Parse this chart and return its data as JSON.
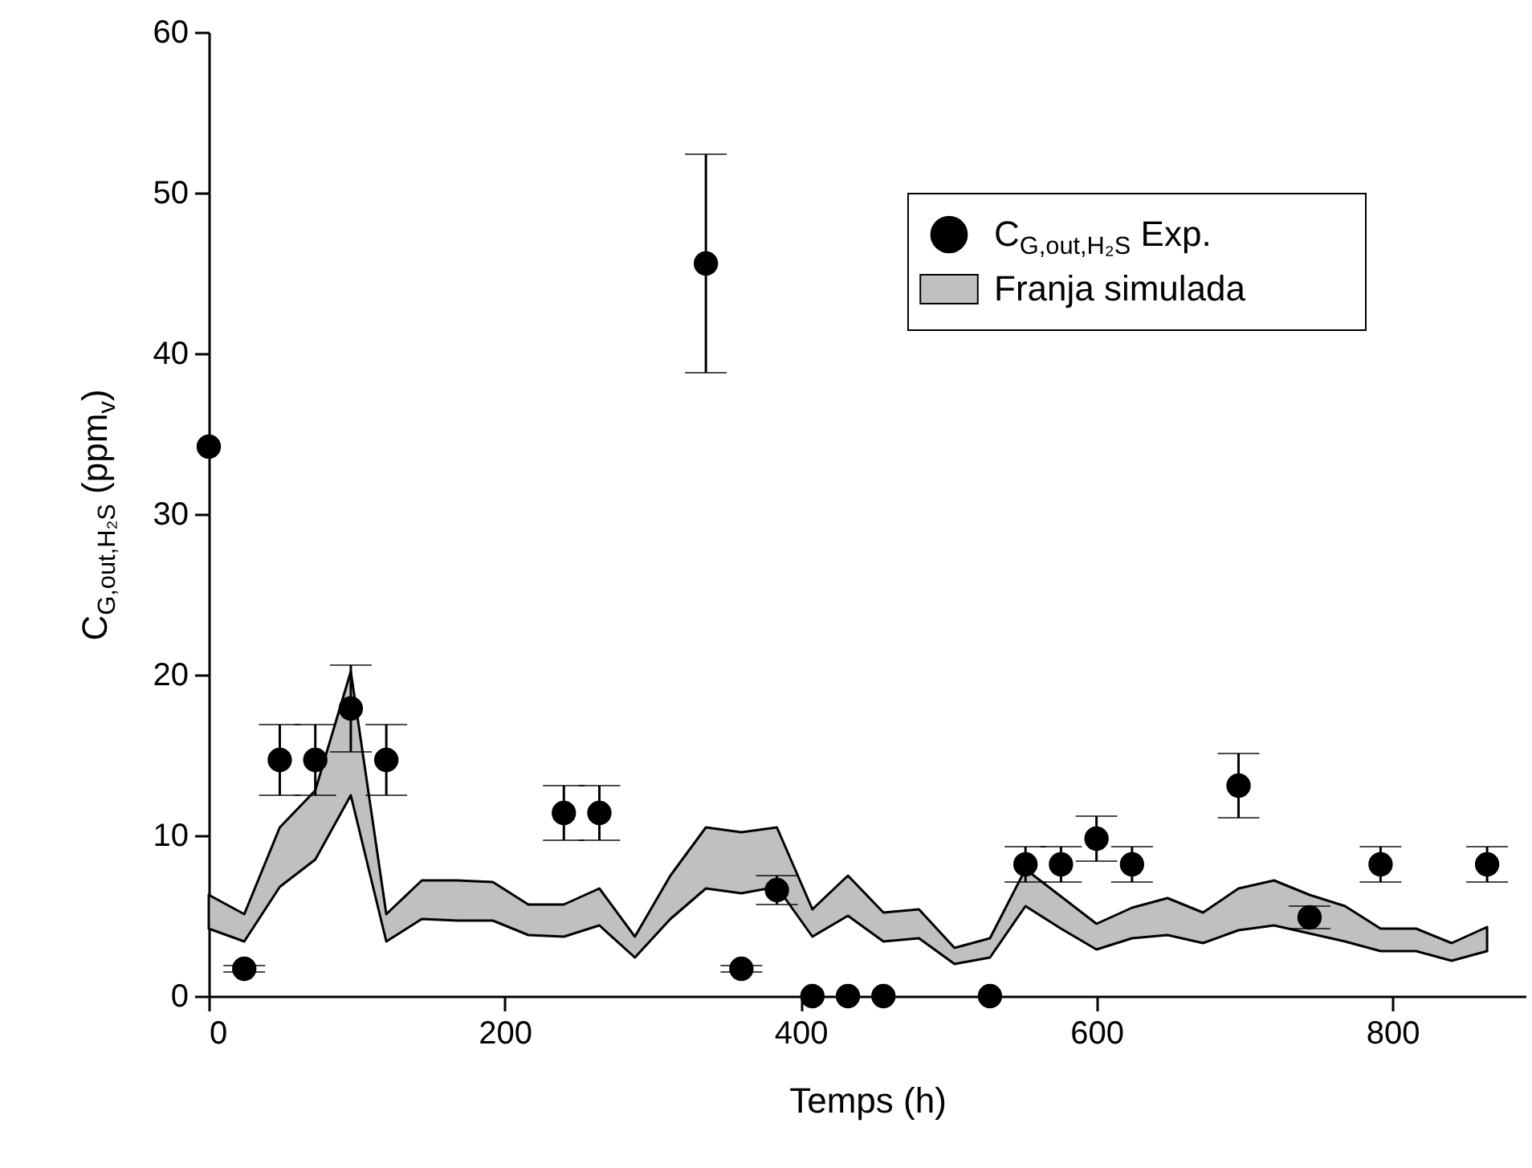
{
  "chart_data": {
    "type": "scatter",
    "xlabel": "Temps (h)",
    "ylabel": "C$_{G,out,H₂S}$ (ppm$_{v}$)",
    "xlim": [
      0,
      890
    ],
    "ylim": [
      0,
      60
    ],
    "xticks": [
      0,
      200,
      400,
      600,
      800
    ],
    "yticks": [
      0,
      10,
      20,
      30,
      40,
      50,
      60
    ],
    "grid": false,
    "legend": "top right",
    "series": [
      {
        "type": "scatter",
        "marker": "circle",
        "name": "C$_{G,out,H₂S}$ Exp.",
        "color": "#000000",
        "x": [
          0,
          24,
          48,
          72,
          96,
          120,
          240,
          264,
          336,
          360,
          384,
          408,
          432,
          456,
          528,
          552,
          576,
          600,
          624,
          696,
          744,
          792,
          864
        ],
        "values": [
          34.2,
          1.7,
          14.7,
          14.7,
          17.9,
          14.7,
          11.4,
          11.4,
          45.6,
          1.7,
          6.6,
          0,
          0,
          0,
          0,
          8.2,
          8.2,
          9.8,
          8.2,
          13.1,
          4.9,
          8.2,
          8.2
        ],
        "errors": [
          null,
          0.2,
          2.2,
          2.2,
          2.7,
          2.2,
          1.7,
          1.7,
          6.8,
          0.2,
          0.9,
          null,
          null,
          null,
          null,
          1.1,
          1.1,
          1.4,
          1.1,
          2,
          0.7,
          1.1,
          1.1
        ]
      },
      {
        "type": "line",
        "name": "Franja simulada",
        "color": "#c0c0c0",
        "x": [
          0,
          24,
          48,
          72,
          96,
          120,
          144,
          168,
          192,
          216,
          240,
          264,
          288,
          312,
          336,
          360,
          384,
          408,
          432,
          456,
          480,
          504,
          528,
          552,
          576,
          600,
          624,
          648,
          672,
          696,
          720,
          744,
          768,
          792,
          816,
          840,
          864
        ],
        "lower": [
          4.2,
          3.4,
          6.8,
          8.5,
          12.5,
          3.4,
          4.8,
          4.7,
          4.7,
          3.8,
          3.7,
          4.4,
          2.4,
          4.8,
          6.7,
          6.4,
          6.8,
          3.7,
          5.0,
          3.4,
          3.6,
          2.0,
          2.4,
          5.6,
          4.2,
          2.9,
          3.6,
          3.8,
          3.3,
          4.1,
          4.4,
          3.9,
          3.4,
          2.8,
          2.8,
          2.2,
          2.8
        ],
        "upper": [
          6.3,
          5.1,
          10.5,
          12.8,
          20.2,
          5.1,
          7.2,
          7.2,
          7.1,
          5.7,
          5.7,
          6.7,
          3.7,
          7.5,
          10.5,
          10.2,
          10.5,
          5.4,
          7.5,
          5.2,
          5.4,
          3.0,
          3.6,
          7.9,
          6.2,
          4.5,
          5.5,
          6.1,
          5.2,
          6.7,
          7.2,
          6.3,
          5.6,
          4.2,
          4.2,
          3.3,
          4.3
        ],
        "values": [
          null,
          null,
          null,
          null,
          null,
          null,
          null,
          null,
          null,
          null,
          null,
          null,
          null,
          null,
          null,
          null,
          null,
          null,
          null,
          null,
          null,
          null,
          null,
          null,
          null,
          null,
          null,
          null,
          null,
          null,
          null,
          null,
          null,
          null,
          null,
          null,
          null
        ]
      }
    ]
  }
}
